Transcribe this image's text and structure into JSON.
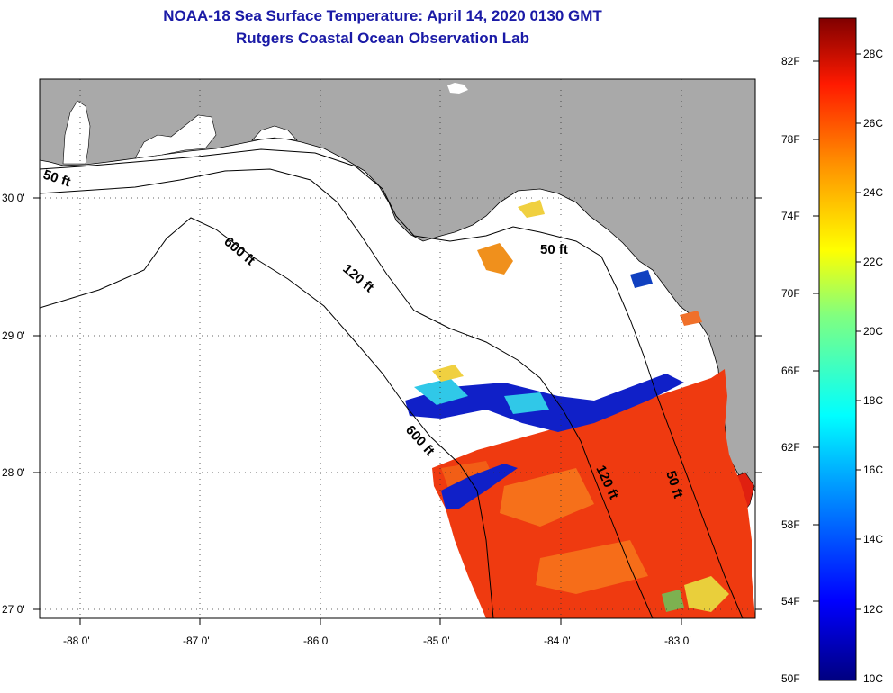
{
  "title": {
    "line1": "NOAA-18 Sea Surface Temperature:  April 14, 2020 0130 GMT",
    "line2": "Rutgers Coastal Ocean Observation Lab"
  },
  "map": {
    "x_ticks": [
      "-88 0'",
      "-87 0'",
      "-86 0'",
      "-85 0'",
      "-84 0'",
      "-83 0'"
    ],
    "y_ticks": [
      "30 0'",
      "29 0'",
      "28 0'",
      "27 0'"
    ],
    "contour_labels": [
      "50 ft",
      "600 ft",
      "120 ft",
      "50 ft",
      "600 ft",
      "120 ft",
      "50 ft"
    ]
  },
  "colorbar": {
    "fahrenheit": [
      "82F",
      "78F",
      "74F",
      "70F",
      "66F",
      "62F",
      "58F",
      "54F",
      "50F"
    ],
    "celsius": [
      "28C",
      "26C",
      "24C",
      "22C",
      "20C",
      "18C",
      "16C",
      "14C",
      "12C",
      "10C"
    ]
  },
  "colors": {
    "land": "#a9a9a9",
    "water": "#ffffff",
    "title": "#1a1aa6",
    "sst_warm": "#ef3a10",
    "sst_cold": "#1020c8"
  }
}
